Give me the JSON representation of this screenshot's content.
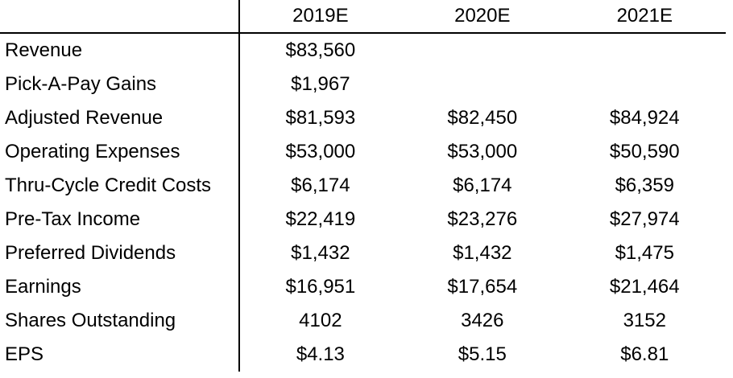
{
  "chart_data": {
    "type": "table",
    "columns": [
      "2019E",
      "2020E",
      "2021E"
    ],
    "rows": [
      {
        "label": "Revenue",
        "values": [
          "$83,560",
          "",
          ""
        ]
      },
      {
        "label": "Pick-A-Pay Gains",
        "values": [
          "$1,967",
          "",
          ""
        ]
      },
      {
        "label": "Adjusted Revenue",
        "values": [
          "$81,593",
          "$82,450",
          "$84,924"
        ]
      },
      {
        "label": "Operating Expenses",
        "values": [
          "$53,000",
          "$53,000",
          "$50,590"
        ]
      },
      {
        "label": "Thru-Cycle Credit Costs",
        "values": [
          "$6,174",
          "$6,174",
          "$6,359"
        ]
      },
      {
        "label": "Pre-Tax Income",
        "values": [
          "$22,419",
          "$23,276",
          "$27,974"
        ]
      },
      {
        "label": "Preferred Dividends",
        "values": [
          "$1,432",
          "$1,432",
          "$1,475"
        ]
      },
      {
        "label": "Earnings",
        "values": [
          "$16,951",
          "$17,654",
          "$21,464"
        ]
      },
      {
        "label": "Shares Outstanding",
        "values": [
          "4102",
          "3426",
          "3152"
        ]
      },
      {
        "label": "EPS",
        "values": [
          "$4.13",
          "$5.15",
          "$6.81"
        ]
      }
    ],
    "layout": {
      "grid": "off",
      "dividers": "vertical line after label column; horizontal line under header row",
      "value_alignment": "center",
      "label_alignment": "left"
    },
    "colors": {
      "text": "#000000",
      "background": "#ffffff",
      "border": "#000000"
    }
  }
}
